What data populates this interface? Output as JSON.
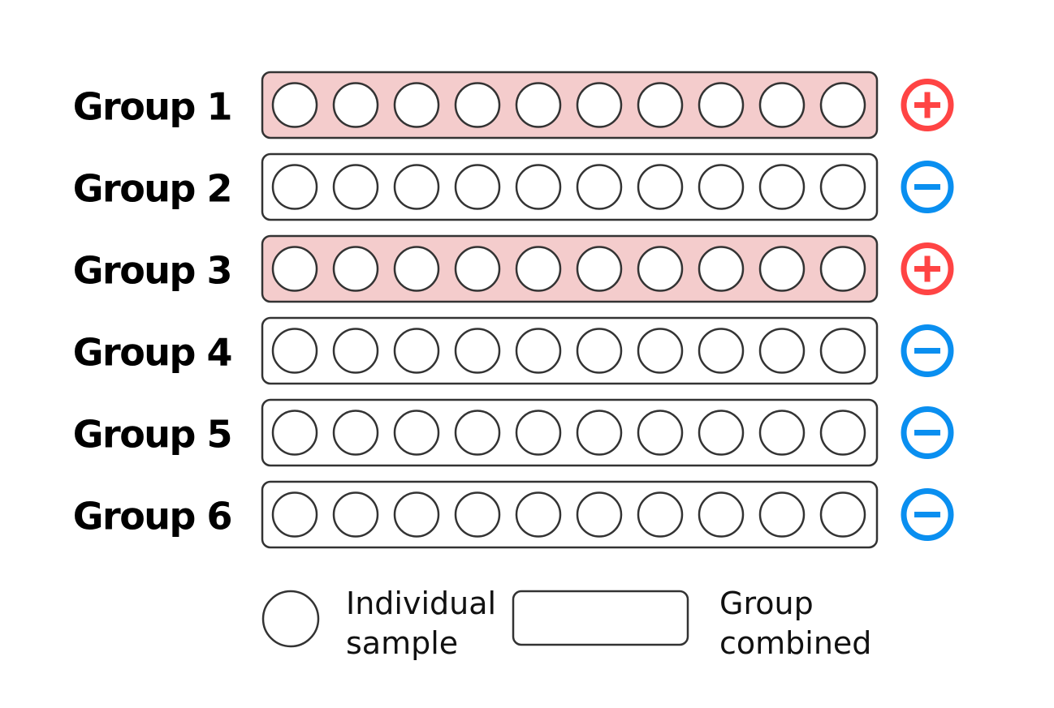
{
  "groups": [
    {
      "label": "Group 1",
      "status": "positive",
      "samples": 10
    },
    {
      "label": "Group 2",
      "status": "negative",
      "samples": 10
    },
    {
      "label": "Group 3",
      "status": "positive",
      "samples": 10
    },
    {
      "label": "Group 4",
      "status": "negative",
      "samples": 10
    },
    {
      "label": "Group 5",
      "status": "negative",
      "samples": 10
    },
    {
      "label": "Group 6",
      "status": "negative",
      "samples": 10
    }
  ],
  "legend": {
    "sample_line1": "Individual",
    "sample_line2": "sample",
    "group_line1": "Group",
    "group_line2": "combined"
  },
  "colors": {
    "positive": "#ff4444",
    "negative": "#0a8ff0",
    "positive_fill": "#f4cccc",
    "stroke": "#333333"
  },
  "icons": {
    "positive": "plus-circle-icon",
    "negative": "minus-circle-icon"
  }
}
